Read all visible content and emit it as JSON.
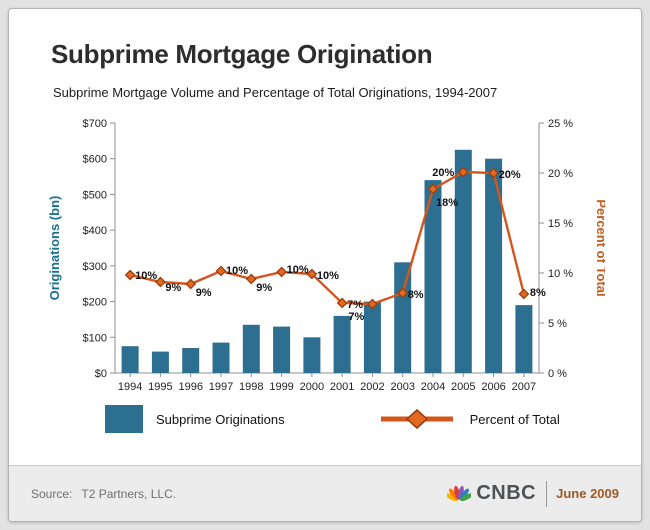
{
  "page": {
    "title": "Subprime Mortgage Origination",
    "subtitle": "Subprime Mortgage Volume and Percentage of Total Originations, 1994-2007"
  },
  "chart_data": {
    "type": "bar+line",
    "categories": [
      "1994",
      "1995",
      "1996",
      "1997",
      "1998",
      "1999",
      "2000",
      "2001",
      "2002",
      "2003",
      "2004",
      "2005",
      "2006",
      "2007"
    ],
    "series": [
      {
        "name": "Subprime Originations",
        "type": "bar",
        "axis": "left",
        "color": "#2c6f91",
        "values": [
          75,
          60,
          70,
          85,
          135,
          130,
          100,
          160,
          200,
          310,
          540,
          625,
          600,
          190
        ]
      },
      {
        "name": "Percent of Total",
        "type": "line",
        "axis": "right",
        "color": "#d4561e",
        "marker_fill": "#e2691f",
        "marker_stroke": "#9c3f10",
        "values": [
          9.8,
          9.1,
          8.9,
          10.2,
          9.4,
          10.1,
          9.9,
          7.0,
          6.9,
          8.0,
          18.4,
          20.1,
          20.0,
          7.9
        ],
        "point_labels": [
          "10%",
          "9%",
          "9%",
          "10%",
          "9%",
          "10%",
          "10%",
          "7%",
          "7%",
          "8%",
          "18%",
          "20%",
          "20%",
          "8%"
        ]
      }
    ],
    "left_axis": {
      "label": "Originations (bn)",
      "min": 0,
      "max": 700,
      "step": 100,
      "tick_labels": [
        "$0",
        "$100",
        "$200",
        "$300",
        "$400",
        "$500",
        "$600",
        "$700"
      ],
      "color": "#17708f"
    },
    "right_axis": {
      "label": "Percent of Total",
      "min": 0,
      "max": 25,
      "step": 5,
      "tick_labels": [
        "0 %",
        "5 %",
        "10 %",
        "15 %",
        "20 %",
        "25 %"
      ],
      "color": "#c2591d"
    },
    "grid": "off",
    "legend_position": "bottom"
  },
  "legend": {
    "items": [
      {
        "label": "Subprime Originations",
        "type": "bar",
        "color": "#2c6f91"
      },
      {
        "label": "Percent of Total",
        "type": "line",
        "color": "#d4561e"
      }
    ]
  },
  "footer": {
    "source_label": "Source:",
    "source_value": "T2 Partners, LLC.",
    "brand": "CNBC",
    "logo_icon": "cnbc-peacock-icon",
    "date": "June 2009"
  }
}
